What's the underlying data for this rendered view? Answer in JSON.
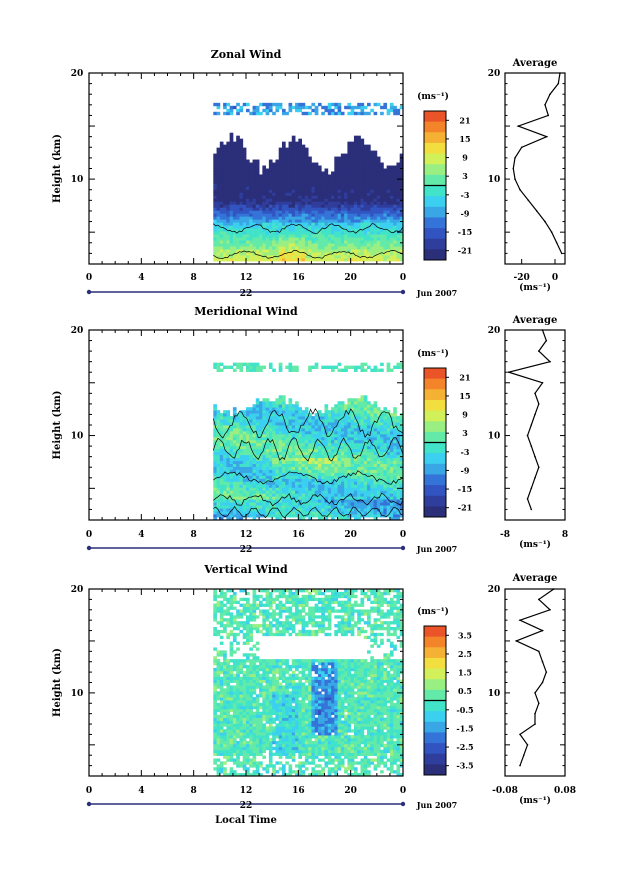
{
  "chart_data": [
    {
      "type": "heatmap",
      "title": "Zonal Wind",
      "ylabel": "Height (km)",
      "xlabel": "",
      "ylim": [
        2,
        20
      ],
      "xlim": [
        0,
        24
      ],
      "x_ticks": [
        "0",
        "4",
        "8",
        "12",
        "16",
        "20",
        "0"
      ],
      "y_ticks": [
        "20",
        "10"
      ],
      "date_label": "22",
      "month_label": "Jun 2007",
      "colorbar": {
        "unit": "(ms⁻¹)",
        "ticks": [
          "21",
          "15",
          "9",
          "3",
          "-3",
          "-9",
          "-15",
          "-21"
        ],
        "min": -24,
        "max": 24
      },
      "data_time_range": [
        9.5,
        24
      ],
      "profile": {
        "title": "Average",
        "xlabel": "(ms⁻¹)",
        "x_ticks": [
          "-20",
          "0"
        ],
        "xlim": [
          -30,
          6
        ],
        "y_ticks": [
          "20",
          "10"
        ],
        "heights": [
          3,
          4,
          5,
          6,
          7,
          8,
          9,
          10,
          11,
          12,
          13,
          14,
          15,
          16,
          17,
          18,
          19,
          20
        ],
        "values": [
          4,
          1,
          -2,
          -6,
          -11,
          -16,
          -21,
          -24,
          -25,
          -24,
          -20,
          -5,
          -22,
          -4,
          -6,
          -3,
          2,
          3
        ]
      }
    },
    {
      "type": "heatmap",
      "title": "Meridional Wind",
      "ylabel": "Height (km)",
      "xlabel": "",
      "ylim": [
        2,
        20
      ],
      "xlim": [
        0,
        24
      ],
      "x_ticks": [
        "0",
        "4",
        "8",
        "12",
        "16",
        "20",
        "0"
      ],
      "y_ticks": [
        "20",
        "10"
      ],
      "date_label": "22",
      "month_label": "Jun 2007",
      "colorbar": {
        "unit": "(ms⁻¹)",
        "ticks": [
          "21",
          "15",
          "9",
          "3",
          "-3",
          "-9",
          "-15",
          "-21"
        ],
        "min": -24,
        "max": 24
      },
      "data_time_range": [
        9.5,
        24
      ],
      "profile": {
        "title": "Average",
        "xlabel": "(ms⁻¹)",
        "x_ticks": [
          "-8",
          "8"
        ],
        "xlim": [
          -8,
          8
        ],
        "y_ticks": [
          "20",
          "10"
        ],
        "heights": [
          3,
          4,
          5,
          6,
          7,
          8,
          9,
          10,
          11,
          12,
          13,
          14,
          15,
          16,
          17,
          18,
          19,
          20
        ],
        "values": [
          -1,
          -2,
          -1,
          0,
          1,
          0,
          -1,
          -2,
          -1,
          0,
          1,
          0,
          2,
          -7,
          4,
          1,
          3,
          2
        ]
      }
    },
    {
      "type": "heatmap",
      "title": "Vertical Wind",
      "ylabel": "Height (km)",
      "xlabel": "Local Time",
      "ylim": [
        2,
        20
      ],
      "xlim": [
        0,
        24
      ],
      "x_ticks": [
        "0",
        "4",
        "8",
        "12",
        "16",
        "20",
        "0"
      ],
      "y_ticks": [
        "20",
        "10"
      ],
      "date_label": "22",
      "month_label": "Jun 2007",
      "colorbar": {
        "unit": "(ms⁻¹)",
        "ticks": [
          "3.5",
          "2.5",
          "1.5",
          "0.5",
          "-0.5",
          "-1.5",
          "-2.5",
          "-3.5"
        ],
        "min": -4,
        "max": 4
      },
      "data_time_range": [
        9.5,
        24
      ],
      "profile": {
        "title": "Average",
        "xlabel": "(ms⁻¹)",
        "x_ticks": [
          "-0.08",
          "0.08"
        ],
        "xlim": [
          -0.08,
          0.08
        ],
        "y_ticks": [
          "20",
          "10"
        ],
        "heights": [
          3,
          4,
          5,
          6,
          7,
          8,
          9,
          10,
          11,
          12,
          13,
          14,
          15,
          16,
          17,
          18,
          19,
          20
        ],
        "values": [
          -0.04,
          -0.03,
          -0.02,
          -0.04,
          0.0,
          0.0,
          0.01,
          0.0,
          0.02,
          0.03,
          0.02,
          0.01,
          -0.05,
          0.02,
          -0.04,
          0.04,
          0.01,
          0.05
        ]
      }
    }
  ]
}
